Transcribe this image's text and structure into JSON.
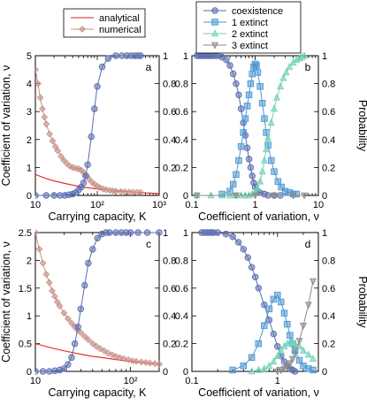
{
  "legend_left": [
    {
      "label": "analytical",
      "color": "#e0221e",
      "marker": "none"
    },
    {
      "label": "numerical",
      "color": "#c9908a",
      "marker": "diamond"
    }
  ],
  "legend_right": [
    {
      "label": "coexistence",
      "color": "#5b6db0",
      "marker": "circle"
    },
    {
      "label": "1 extinct",
      "color": "#4d97d4",
      "marker": "square"
    },
    {
      "label": "2 extinct",
      "color": "#72d3b6",
      "marker": "triangle-up"
    },
    {
      "label": "3 extinct",
      "color": "#8c8c8c",
      "marker": "triangle-down"
    }
  ],
  "chart_data": [
    {
      "id": "a",
      "letter": "a",
      "type": "line",
      "xscale": "log",
      "xlim": [
        10,
        1000
      ],
      "ylim_left": [
        0,
        5
      ],
      "ylim_right": [
        0,
        1
      ],
      "xticks": [
        10,
        100,
        1000
      ],
      "xtick_labels": [
        "10",
        "10²",
        "10³"
      ],
      "yticks_left": [
        0,
        1,
        2,
        3,
        4,
        5
      ],
      "yticks_right": [
        0,
        0.2,
        0.4,
        0.6,
        0.8,
        1
      ],
      "ytick_labels_left": [
        "0",
        "1",
        "2",
        "3",
        "4",
        "5"
      ],
      "ytick_labels_right": [
        "0",
        "0.2",
        "0.4",
        "0.6",
        "0.8",
        "1"
      ],
      "xlabel": "Carrying capacity, K",
      "ylabel_left": "Coefficient of variation, ν",
      "ylabel_right": "",
      "series": [
        {
          "name": "analytical",
          "axis": "left",
          "color": "#e0221e",
          "marker": "none",
          "x": [
            10,
            15,
            20,
            30,
            40,
            50,
            60,
            80,
            100,
            150,
            200,
            300,
            500,
            1000
          ],
          "y": [
            0.75,
            0.6,
            0.52,
            0.43,
            0.37,
            0.33,
            0.3,
            0.26,
            0.23,
            0.19,
            0.17,
            0.14,
            0.1,
            0.07
          ]
        },
        {
          "name": "numerical",
          "axis": "left",
          "color": "#c9908a",
          "marker": "diamond",
          "x": [
            10,
            11,
            12,
            13,
            14,
            15,
            17,
            19,
            21,
            23,
            26,
            29,
            32,
            36,
            40,
            45,
            50,
            55,
            60,
            67,
            74,
            82,
            90,
            100,
            110,
            125,
            140,
            160,
            180,
            200,
            240,
            280,
            330,
            380,
            440,
            500
          ],
          "y": [
            4.5,
            4.0,
            3.5,
            3.1,
            2.8,
            2.55,
            2.2,
            1.95,
            1.75,
            1.6,
            1.4,
            1.25,
            1.15,
            1.05,
            1.0,
            0.97,
            0.95,
            0.9,
            0.82,
            0.7,
            0.58,
            0.47,
            0.4,
            0.33,
            0.28,
            0.23,
            0.2,
            0.18,
            0.16,
            0.15,
            0.14,
            0.13,
            0.12,
            0.12,
            0.11,
            0.11
          ]
        },
        {
          "name": "coexistence",
          "axis": "right",
          "color": "#5b6db0",
          "marker": "circle",
          "x": [
            10,
            15,
            20,
            25,
            30,
            35,
            40,
            45,
            50,
            55,
            60,
            65,
            70,
            80,
            90,
            100,
            120,
            150,
            200,
            250,
            300,
            350,
            400,
            450,
            500
          ],
          "y": [
            0,
            0,
            0,
            0,
            0,
            0.005,
            0.01,
            0.02,
            0.04,
            0.06,
            0.09,
            0.14,
            0.22,
            0.42,
            0.62,
            0.78,
            0.92,
            0.98,
            1,
            1,
            1,
            1,
            1,
            1,
            1
          ]
        }
      ]
    },
    {
      "id": "b",
      "letter": "b",
      "type": "line",
      "xscale": "log",
      "xlim": [
        0.1,
        10
      ],
      "ylim_left": [
        0,
        1
      ],
      "ylim_right": [
        0,
        1
      ],
      "xticks": [
        0.1,
        1,
        10
      ],
      "xtick_labels": [
        "0.1",
        "1",
        "10"
      ],
      "yticks_left": [
        0,
        0.2,
        0.4,
        0.6,
        0.8,
        1
      ],
      "yticks_right": [
        0,
        0.2,
        0.4,
        0.6,
        0.8,
        1
      ],
      "ytick_labels_left": [
        "0",
        "0.2",
        "0.4",
        "0.6",
        "0.8",
        "1"
      ],
      "ytick_labels_right": [
        "0",
        "0.2",
        "0.4",
        "0.6",
        "0.8",
        "1"
      ],
      "xlabel": "Coefficient of variation, ν",
      "ylabel_left": "",
      "ylabel_right": "Probability",
      "series": [
        {
          "name": "coexistence",
          "axis": "left",
          "color": "#5b6db0",
          "marker": "circle",
          "x": [
            0.12,
            0.13,
            0.14,
            0.15,
            0.16,
            0.17,
            0.18,
            0.19,
            0.2,
            0.22,
            0.24,
            0.26,
            0.3,
            0.35,
            0.4,
            0.45,
            0.5,
            0.55,
            0.6,
            0.65,
            0.7,
            0.75,
            0.8,
            0.85,
            0.9,
            0.95,
            1.0,
            1.1,
            1.2,
            1.4,
            1.6,
            2.0,
            2.5
          ],
          "y": [
            1,
            1,
            1,
            1,
            1,
            1,
            1,
            1,
            1,
            1,
            1,
            1,
            0.99,
            0.97,
            0.93,
            0.87,
            0.8,
            0.72,
            0.62,
            0.52,
            0.43,
            0.34,
            0.26,
            0.2,
            0.14,
            0.09,
            0.06,
            0.03,
            0.02,
            0.01,
            0,
            0,
            0
          ]
        },
        {
          "name": "1 extinct",
          "axis": "left",
          "color": "#4d97d4",
          "marker": "square",
          "x": [
            0.3,
            0.4,
            0.45,
            0.5,
            0.55,
            0.6,
            0.65,
            0.7,
            0.75,
            0.8,
            0.85,
            0.9,
            0.95,
            1.0,
            1.05,
            1.1,
            1.2,
            1.3,
            1.4,
            1.5,
            1.6,
            1.8,
            2.0,
            2.3,
            2.6,
            3.0,
            3.5,
            4.0,
            4.5
          ],
          "y": [
            0.01,
            0.03,
            0.08,
            0.15,
            0.25,
            0.35,
            0.45,
            0.55,
            0.64,
            0.72,
            0.8,
            0.87,
            0.92,
            0.94,
            0.93,
            0.88,
            0.78,
            0.66,
            0.55,
            0.45,
            0.36,
            0.25,
            0.17,
            0.1,
            0.06,
            0.03,
            0.02,
            0.01,
            0.01
          ]
        },
        {
          "name": "2 extinct",
          "axis": "left",
          "color": "#72d3b6",
          "marker": "triangle-up",
          "x": [
            0.12,
            0.2,
            0.3,
            0.4,
            0.5,
            0.6,
            0.7,
            0.8,
            0.9,
            1.0,
            1.1,
            1.2,
            1.3,
            1.4,
            1.5,
            1.6,
            1.8,
            2.0,
            2.2,
            2.5,
            2.8,
            3.1,
            3.5,
            4.0,
            4.5,
            5.0,
            5.5,
            6.0
          ],
          "y": [
            0,
            0,
            0,
            0,
            0,
            0,
            0,
            0,
            0.01,
            0.02,
            0.05,
            0.1,
            0.17,
            0.25,
            0.33,
            0.41,
            0.52,
            0.62,
            0.7,
            0.78,
            0.84,
            0.88,
            0.92,
            0.95,
            0.97,
            0.98,
            0.99,
            1
          ]
        },
        {
          "name": "3 extinct",
          "axis": "left",
          "color": "#8c8c8c",
          "marker": "triangle-down",
          "x": [
            0.12,
            0.5,
            1.0,
            2.0,
            4.0,
            6.0
          ],
          "y": [
            0,
            0,
            0,
            0,
            0,
            0
          ]
        }
      ]
    },
    {
      "id": "c",
      "letter": "c",
      "type": "line",
      "xscale": "log",
      "xlim": [
        10,
        200
      ],
      "ylim_left": [
        0,
        2.5
      ],
      "ylim_right": [
        0,
        1
      ],
      "xticks": [
        10,
        100
      ],
      "xtick_labels": [
        "10",
        "10²"
      ],
      "yticks_left": [
        0,
        0.5,
        1,
        1.5,
        2,
        2.5
      ],
      "yticks_right": [
        0,
        0.2,
        0.4,
        0.6,
        0.8,
        1
      ],
      "ytick_labels_left": [
        "0",
        "0.5",
        "1",
        "1.5",
        "2",
        "2.5"
      ],
      "ytick_labels_right": [
        "0",
        "0.2",
        "0.4",
        "0.6",
        "0.8",
        "1"
      ],
      "xlabel": "Carrying capacity, K",
      "ylabel_left": "Coefficient of variation, ν",
      "ylabel_right": "",
      "series": [
        {
          "name": "analytical",
          "axis": "left",
          "color": "#e0221e",
          "marker": "none",
          "x": [
            10,
            15,
            20,
            30,
            40,
            50,
            60,
            80,
            100,
            150,
            200
          ],
          "y": [
            0.5,
            0.42,
            0.37,
            0.31,
            0.27,
            0.25,
            0.23,
            0.2,
            0.18,
            0.15,
            0.13
          ]
        },
        {
          "name": "numerical",
          "axis": "left",
          "color": "#c9908a",
          "marker": "diamond",
          "x": [
            10,
            11,
            12,
            13,
            14,
            15,
            16,
            17,
            18,
            20,
            22,
            24,
            26,
            28,
            30,
            33,
            36,
            40,
            44,
            48,
            53,
            58,
            64,
            70,
            77,
            85,
            95,
            105,
            115,
            130,
            145,
            160,
            180,
            200
          ],
          "y": [
            2.5,
            2.2,
            1.95,
            1.75,
            1.6,
            1.45,
            1.35,
            1.25,
            1.18,
            1.05,
            0.95,
            0.87,
            0.8,
            0.74,
            0.7,
            0.63,
            0.57,
            0.5,
            0.45,
            0.41,
            0.37,
            0.33,
            0.3,
            0.27,
            0.25,
            0.23,
            0.21,
            0.19,
            0.18,
            0.17,
            0.16,
            0.15,
            0.14,
            0.13
          ]
        },
        {
          "name": "coexistence",
          "axis": "right",
          "color": "#5b6db0",
          "marker": "circle",
          "x": [
            10,
            12,
            14,
            16,
            18,
            20,
            22,
            24,
            26,
            28,
            30,
            33,
            36,
            40,
            45,
            50,
            55,
            60,
            70,
            80,
            90,
            100,
            120,
            150,
            200
          ],
          "y": [
            0,
            0,
            0,
            0.005,
            0.01,
            0.02,
            0.05,
            0.1,
            0.2,
            0.32,
            0.45,
            0.62,
            0.78,
            0.88,
            0.96,
            0.99,
            1,
            1,
            1,
            1,
            1,
            1,
            1,
            1,
            1
          ]
        }
      ]
    },
    {
      "id": "d",
      "letter": "d",
      "type": "line",
      "xscale": "log",
      "xlim": [
        0.1,
        3
      ],
      "ylim_left": [
        0,
        1
      ],
      "ylim_right": [
        0,
        1
      ],
      "xticks": [
        0.1,
        1
      ],
      "xtick_labels": [
        "0.1",
        "1"
      ],
      "yticks_left": [
        0,
        0.2,
        0.4,
        0.6,
        0.8,
        1
      ],
      "yticks_right": [
        0,
        0.2,
        0.4,
        0.6,
        0.8,
        1
      ],
      "ytick_labels_left": [
        "0",
        "0.2",
        "0.4",
        "0.6",
        "0.8",
        "1"
      ],
      "ytick_labels_right": [
        "0",
        "0.2",
        "0.4",
        "0.6",
        "0.8",
        "1"
      ],
      "xlabel": "Coefficient of variation, ν",
      "ylabel_left": "",
      "ylabel_right": "Probability",
      "series": [
        {
          "name": "coexistence",
          "axis": "left",
          "color": "#5b6db0",
          "marker": "circle",
          "x": [
            0.13,
            0.14,
            0.15,
            0.16,
            0.17,
            0.18,
            0.2,
            0.25,
            0.3,
            0.35,
            0.4,
            0.45,
            0.5,
            0.55,
            0.6,
            0.7,
            0.8,
            0.9,
            1.0,
            1.1,
            1.2,
            1.3,
            1.4,
            1.5,
            1.6
          ],
          "y": [
            1,
            1,
            1,
            1,
            1,
            1,
            1,
            0.99,
            0.97,
            0.93,
            0.88,
            0.82,
            0.75,
            0.68,
            0.6,
            0.48,
            0.37,
            0.27,
            0.18,
            0.11,
            0.07,
            0.04,
            0.02,
            0.01,
            0
          ]
        },
        {
          "name": "1 extinct",
          "axis": "left",
          "color": "#4d97d4",
          "marker": "square",
          "x": [
            0.3,
            0.4,
            0.5,
            0.6,
            0.7,
            0.8,
            0.9,
            1.0,
            1.1,
            1.2,
            1.3,
            1.4,
            1.5,
            1.6,
            1.8,
            2.0,
            2.3,
            2.6
          ],
          "y": [
            0.01,
            0.04,
            0.1,
            0.2,
            0.33,
            0.45,
            0.52,
            0.55,
            0.5,
            0.42,
            0.34,
            0.26,
            0.2,
            0.15,
            0.08,
            0.04,
            0.02,
            0.01
          ]
        },
        {
          "name": "2 extinct",
          "axis": "left",
          "color": "#72d3b6",
          "marker": "triangle-up",
          "x": [
            0.5,
            0.6,
            0.7,
            0.8,
            0.9,
            1.0,
            1.1,
            1.2,
            1.3,
            1.4,
            1.5,
            1.6,
            1.8,
            2.0,
            2.3,
            2.6
          ],
          "y": [
            0,
            0.01,
            0.02,
            0.04,
            0.07,
            0.11,
            0.15,
            0.18,
            0.2,
            0.21,
            0.21,
            0.2,
            0.18,
            0.15,
            0.12,
            0.09
          ]
        },
        {
          "name": "3 extinct",
          "axis": "left",
          "color": "#8c8c8c",
          "marker": "triangle-down",
          "x": [
            1.0,
            1.1,
            1.2,
            1.3,
            1.4,
            1.5,
            1.6,
            1.8,
            2.0,
            2.3,
            2.6
          ],
          "y": [
            0,
            0.01,
            0.02,
            0.04,
            0.06,
            0.09,
            0.13,
            0.22,
            0.33,
            0.48,
            0.65
          ]
        }
      ]
    }
  ]
}
